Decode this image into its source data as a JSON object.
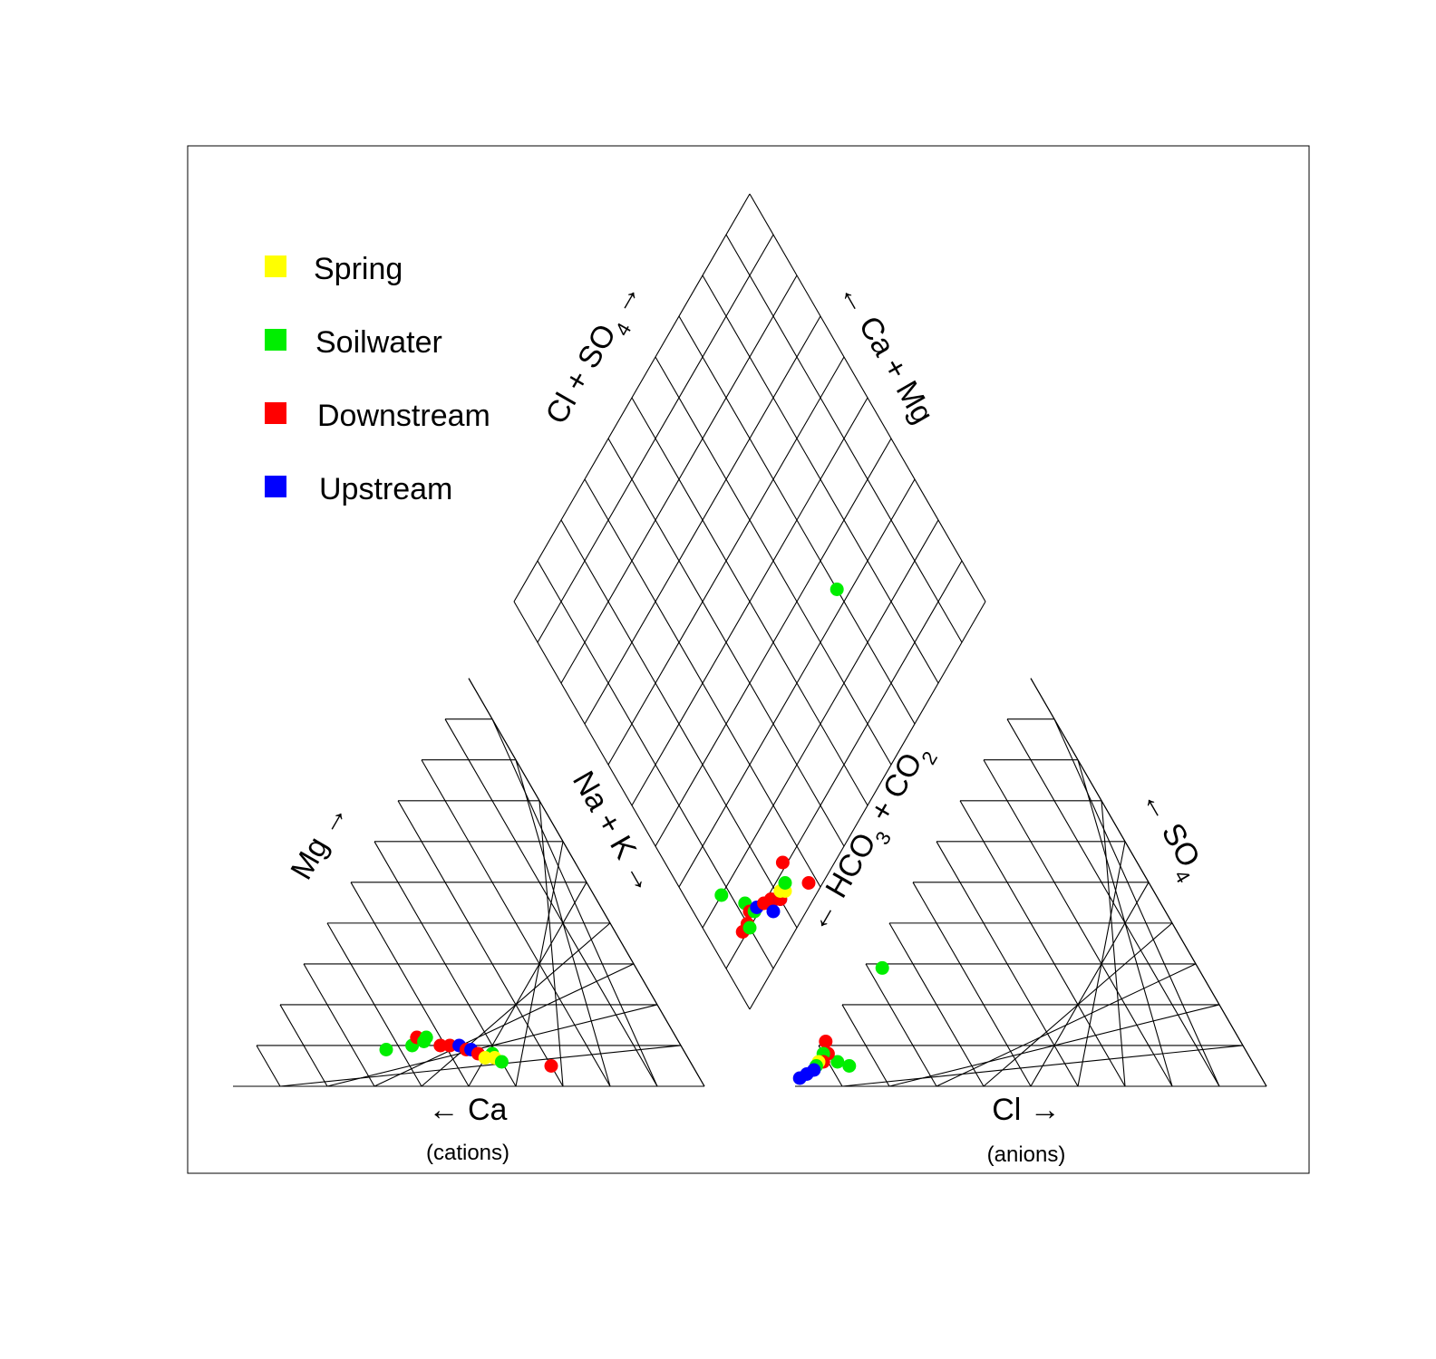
{
  "chart_data": {
    "type": "scatter",
    "subtype": "piper-diagram",
    "grid": true,
    "legend_position": "top-left",
    "legend": [
      {
        "name": "Spring",
        "color": "#ffff00"
      },
      {
        "name": "Soilwater",
        "color": "#00ee00"
      },
      {
        "name": "Downstream",
        "color": "#ff0000"
      },
      {
        "name": "Upstream",
        "color": "#0000ff"
      }
    ],
    "labels": {
      "cation_left": "Mg →",
      "cation_right": "Na + K →",
      "cation_bottom": "← Ca",
      "cation_sub": "(cations)",
      "anion_left_pre": "← HCO",
      "anion_left_mid": " + CO",
      "anion_left_sub1": "3",
      "anion_left_sub2": "2",
      "anion_right_pre": "← SO",
      "anion_right_sub": "4",
      "anion_bottom": "Cl →",
      "anion_sub": "(anions)",
      "diamond_left_pre": "Cl + SO",
      "diamond_left_sub": "4",
      "diamond_left_arrow": "→",
      "diamond_right": "← Ca + Mg"
    },
    "cation_points": [
      {
        "series": "Soilwater",
        "ca": 63,
        "mg": 9,
        "nak": 28
      },
      {
        "series": "Soilwater",
        "ca": 57,
        "mg": 10,
        "nak": 33
      },
      {
        "series": "Downstream",
        "ca": 55,
        "mg": 12,
        "nak": 33
      },
      {
        "series": "Soilwater",
        "ca": 54,
        "mg": 11,
        "nak": 35
      },
      {
        "series": "Soilwater",
        "ca": 53,
        "mg": 12,
        "nak": 35
      },
      {
        "series": "Downstream",
        "ca": 51,
        "mg": 10,
        "nak": 39
      },
      {
        "series": "Downstream",
        "ca": 49,
        "mg": 10,
        "nak": 41
      },
      {
        "series": "Upstream",
        "ca": 47,
        "mg": 10,
        "nak": 43
      },
      {
        "series": "Downstream",
        "ca": 46,
        "mg": 9,
        "nak": 45
      },
      {
        "series": "Upstream",
        "ca": 45,
        "mg": 9,
        "nak": 46
      },
      {
        "series": "Downstream",
        "ca": 44,
        "mg": 8,
        "nak": 48
      },
      {
        "series": "Soilwater",
        "ca": 41,
        "mg": 8,
        "nak": 51
      },
      {
        "series": "Spring",
        "ca": 43,
        "mg": 7,
        "nak": 50
      },
      {
        "series": "Spring",
        "ca": 41,
        "mg": 7,
        "nak": 52
      },
      {
        "series": "Soilwater",
        "ca": 40,
        "mg": 6,
        "nak": 54
      },
      {
        "series": "Downstream",
        "ca": 30,
        "mg": 5,
        "nak": 65
      }
    ],
    "anion_points": [
      {
        "series": "Soilwater",
        "hco3": 67,
        "so4": 29,
        "cl": 4
      },
      {
        "series": "Soilwater",
        "hco3": 86,
        "so4": 5,
        "cl": 9
      },
      {
        "series": "Soilwater",
        "hco3": 88,
        "so4": 6,
        "cl": 6
      },
      {
        "series": "Downstream",
        "hco3": 88,
        "so4": 11,
        "cl": 1
      },
      {
        "series": "Downstream",
        "hco3": 89,
        "so4": 8,
        "cl": 3
      },
      {
        "series": "Soilwater",
        "hco3": 90,
        "so4": 8,
        "cl": 2
      },
      {
        "series": "Downstream",
        "hco3": 91,
        "so4": 6,
        "cl": 3
      },
      {
        "series": "Spring",
        "hco3": 92,
        "so4": 6,
        "cl": 2
      },
      {
        "series": "Soilwater",
        "hco3": 93,
        "so4": 5,
        "cl": 2
      },
      {
        "series": "Upstream",
        "hco3": 94,
        "so4": 4,
        "cl": 2
      },
      {
        "series": "Upstream",
        "hco3": 96,
        "so4": 3,
        "cl": 1
      },
      {
        "series": "Upstream",
        "hco3": 98,
        "so4": 2,
        "cl": 0
      }
    ],
    "diamond_points": [
      {
        "series": "Soilwater",
        "cl_so4": 33,
        "ca_mg": 30
      },
      {
        "series": "Soilwater",
        "cl_so4": 20,
        "ca_mg": 92
      },
      {
        "series": "Soilwater",
        "cl_so4": 14,
        "ca_mg": 88
      },
      {
        "series": "Downstream",
        "cl_so4": 11,
        "ca_mg": 92
      },
      {
        "series": "Downstream",
        "cl_so4": 11,
        "ca_mg": 90
      },
      {
        "series": "Soilwater",
        "cl_so4": 10,
        "ca_mg": 90
      },
      {
        "series": "Downstream",
        "cl_so4": 12,
        "ca_mg": 88
      },
      {
        "series": "Soilwater",
        "cl_so4": 11,
        "ca_mg": 87
      },
      {
        "series": "Upstream",
        "cl_so4": 11,
        "ca_mg": 86
      },
      {
        "series": "Downstream",
        "cl_so4": 10,
        "ca_mg": 84
      },
      {
        "series": "Downstream",
        "cl_so4": 9,
        "ca_mg": 83
      },
      {
        "series": "Downstream",
        "cl_so4": 9,
        "ca_mg": 82
      },
      {
        "series": "Downstream",
        "cl_so4": 8,
        "ca_mg": 81
      },
      {
        "series": "Upstream",
        "cl_so4": 7,
        "ca_mg": 80
      },
      {
        "series": "Upstream",
        "cl_so4": 7,
        "ca_mg": 83
      },
      {
        "series": "Downstream",
        "cl_so4": 7,
        "ca_mg": 80
      },
      {
        "series": "Spring",
        "cl_so4": 8,
        "ca_mg": 79
      },
      {
        "series": "Spring",
        "cl_so4": 7,
        "ca_mg": 78
      },
      {
        "series": "Soilwater",
        "cl_so4": 8,
        "ca_mg": 77
      },
      {
        "series": "Downstream",
        "cl_so4": 11,
        "ca_mg": 75
      },
      {
        "series": "Downstream",
        "cl_so4": 3,
        "ca_mg": 72
      }
    ]
  }
}
